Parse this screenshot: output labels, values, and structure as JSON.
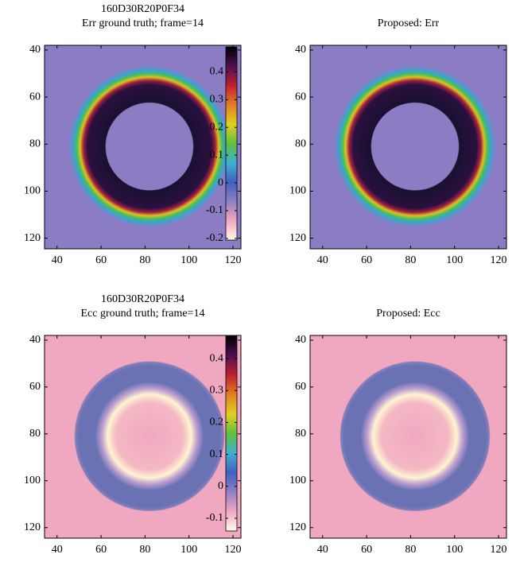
{
  "chart_data": [
    {
      "type": "image",
      "title": "160D30R20P0F34",
      "subtitle": "Err ground truth; frame=14",
      "xlim": [
        34.3,
        123.6
      ],
      "ylim": [
        38,
        124.5
      ],
      "xticks": [
        40,
        60,
        80,
        100,
        120
      ],
      "yticks": [
        40,
        60,
        80,
        100,
        120
      ],
      "y_reversed": true,
      "colorbar": {
        "lim": [
          -0.206,
          0.49
        ],
        "ticks": [
          0.4,
          0.3,
          0.2,
          0.1,
          0,
          -0.1,
          -0.2
        ],
        "colors": [
          "#fffbe8",
          "#f0a8c0",
          "#9080c0",
          "#4060c0",
          "#40b0d0",
          "#60c040",
          "#e0d020",
          "#e08020",
          "#c02030",
          "#501050",
          "#000000"
        ]
      }
    },
    {
      "type": "image",
      "title": "Proposed: Err",
      "xlim": [
        34.3,
        123.6
      ],
      "ylim": [
        38,
        124.5
      ],
      "xticks": [
        40,
        60,
        80,
        100,
        120
      ],
      "yticks": [
        40,
        60,
        80,
        100,
        120
      ],
      "y_reversed": true
    },
    {
      "type": "image",
      "title": "160D30R20P0F34",
      "subtitle": "Ecc ground truth; frame=14",
      "xlim": [
        34.3,
        123.6
      ],
      "ylim": [
        38,
        124.5
      ],
      "xticks": [
        40,
        60,
        80,
        100,
        120
      ],
      "yticks": [
        40,
        60,
        80,
        100,
        120
      ],
      "y_reversed": true,
      "colorbar": {
        "lim": [
          -0.14,
          0.47
        ],
        "ticks": [
          0.4,
          0.3,
          0.2,
          0.1,
          0,
          -0.1
        ],
        "colors": [
          "#fffbe8",
          "#f0a8c0",
          "#9080c0",
          "#4060c0",
          "#40b0d0",
          "#60c040",
          "#e0d020",
          "#e08020",
          "#c02030",
          "#501050",
          "#000000"
        ]
      }
    },
    {
      "type": "image",
      "title": "Proposed: Ecc",
      "xlim": [
        34.3,
        123.6
      ],
      "ylim": [
        38,
        124.5
      ],
      "xticks": [
        40,
        60,
        80,
        100,
        120
      ],
      "yticks": [
        40,
        60,
        80,
        100,
        120
      ],
      "y_reversed": true
    }
  ]
}
